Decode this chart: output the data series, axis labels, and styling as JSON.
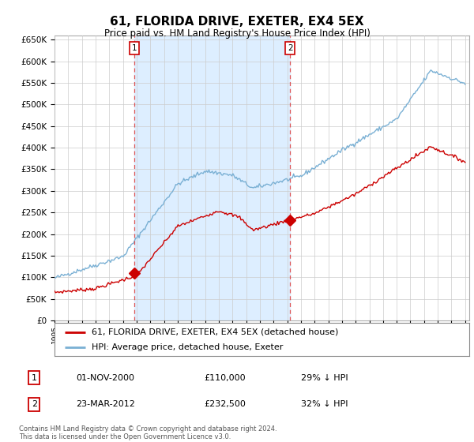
{
  "title": "61, FLORIDA DRIVE, EXETER, EX4 5EX",
  "subtitle": "Price paid vs. HM Land Registry's House Price Index (HPI)",
  "ylim": [
    0,
    660000
  ],
  "yticks": [
    0,
    50000,
    100000,
    150000,
    200000,
    250000,
    300000,
    350000,
    400000,
    450000,
    500000,
    550000,
    600000,
    650000
  ],
  "legend_label_red": "61, FLORIDA DRIVE, EXETER, EX4 5EX (detached house)",
  "legend_label_blue": "HPI: Average price, detached house, Exeter",
  "transaction1_date": "01-NOV-2000",
  "transaction1_price": "£110,000",
  "transaction1_hpi": "29% ↓ HPI",
  "transaction1_year": 2000.83,
  "transaction1_price_val": 110000,
  "transaction2_date": "23-MAR-2012",
  "transaction2_price": "£232,500",
  "transaction2_hpi": "32% ↓ HPI",
  "transaction2_year": 2012.21,
  "transaction2_price_val": 232500,
  "footnote": "Contains HM Land Registry data © Crown copyright and database right 2024.\nThis data is licensed under the Open Government Licence v3.0.",
  "red_color": "#cc0000",
  "blue_color": "#7ab0d4",
  "fill_color": "#ddeeff",
  "grid_color": "#cccccc",
  "background_color": "#ffffff",
  "vline_color": "#dd4444",
  "xlim_start": 1995,
  "xlim_end": 2025.3
}
